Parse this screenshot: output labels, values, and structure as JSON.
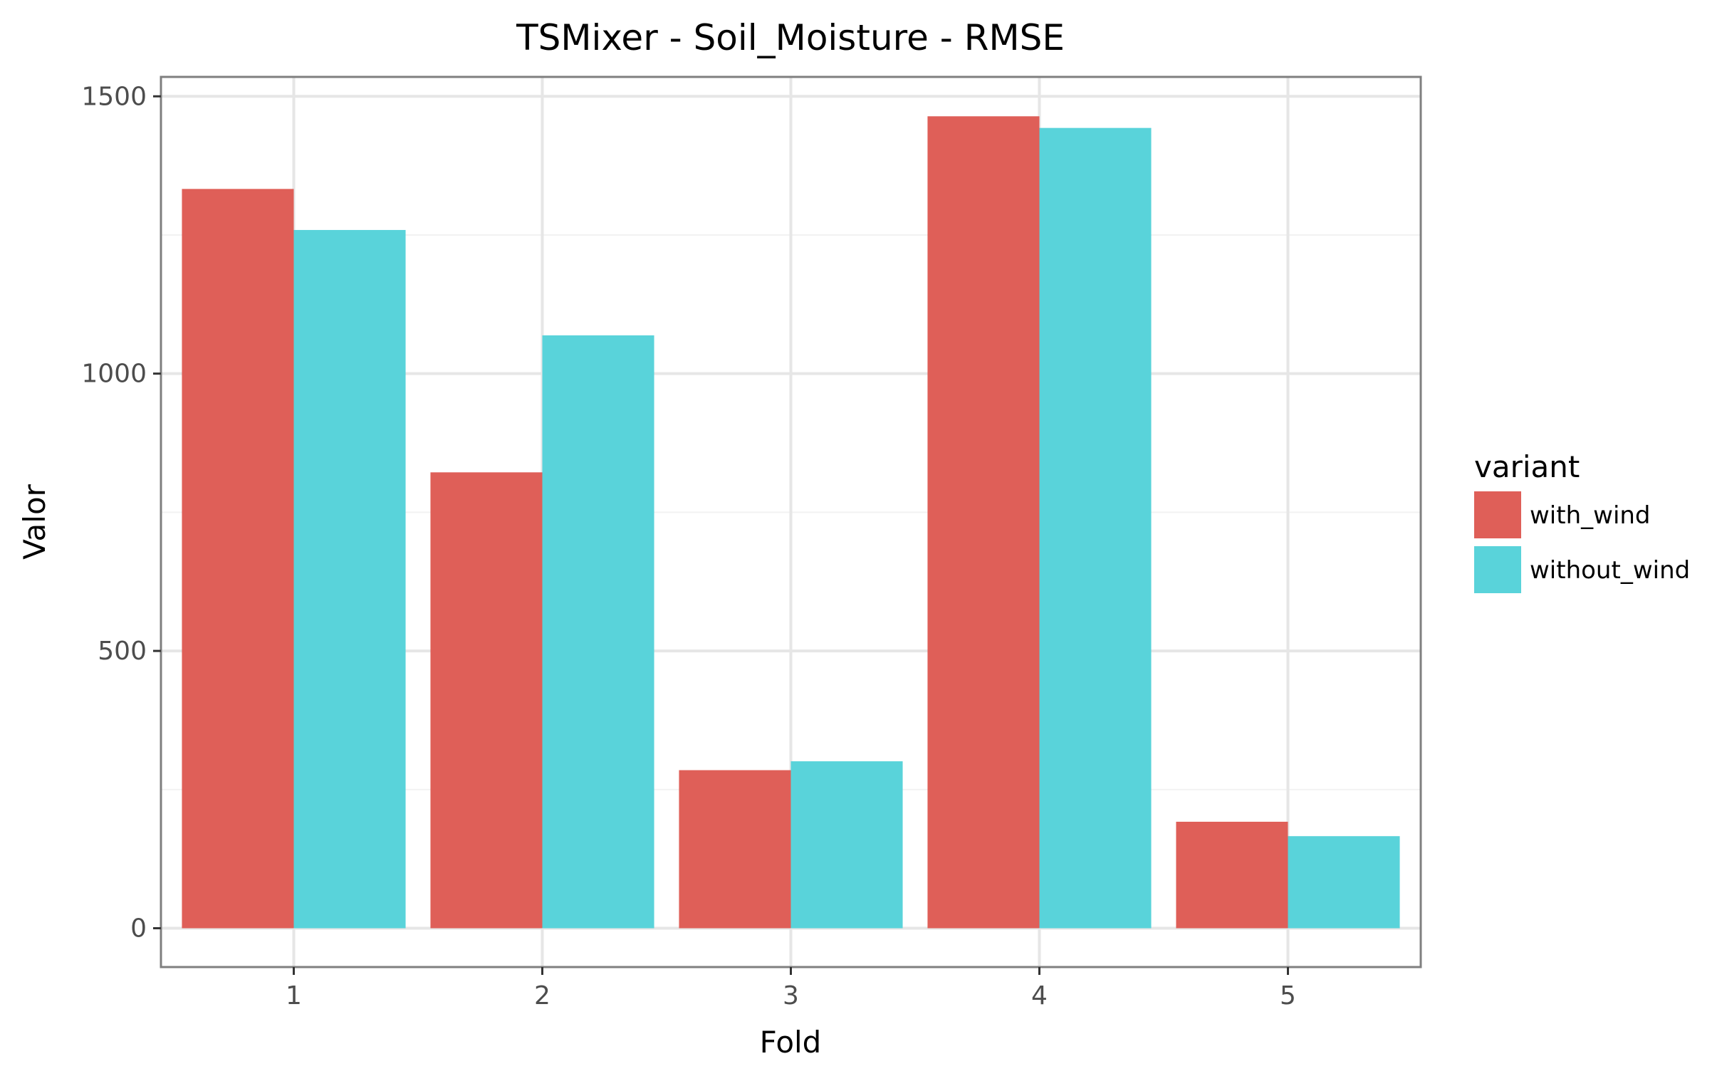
{
  "chart_data": {
    "type": "bar",
    "title": "TSMixer - Soil_Moisture - RMSE",
    "xlabel": "Fold",
    "ylabel": "Valor",
    "categories": [
      "1",
      "2",
      "3",
      "4",
      "5"
    ],
    "series": [
      {
        "name": "with_wind",
        "color": "#df5f58",
        "values": [
          1333,
          822,
          285,
          1464,
          192
        ]
      },
      {
        "name": "without_wind",
        "color": "#59d3da",
        "values": [
          1259,
          1069,
          301,
          1443,
          166
        ]
      }
    ],
    "ylim": [
      -70,
      1535
    ],
    "yticks": [
      0,
      500,
      1000,
      1500
    ],
    "yticks_minor": [
      250,
      750,
      1250
    ],
    "grid": true,
    "legend": {
      "title": "variant",
      "position": "right"
    }
  }
}
